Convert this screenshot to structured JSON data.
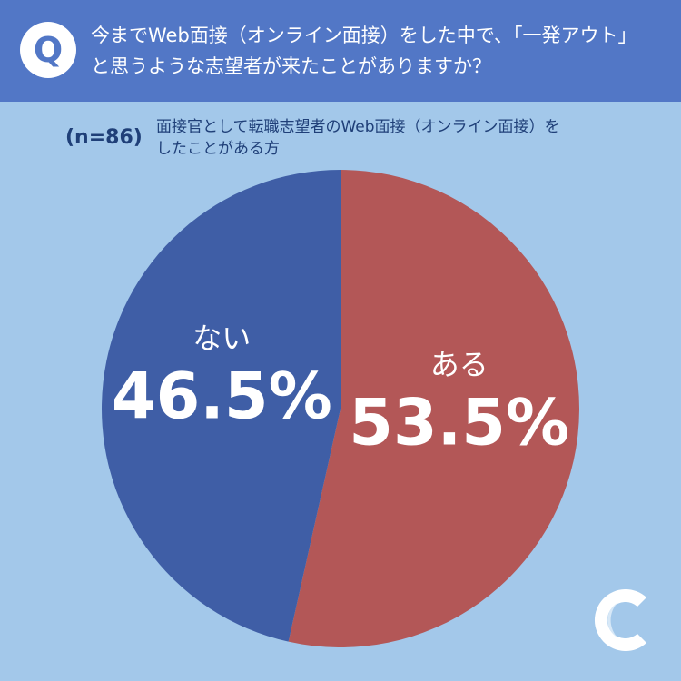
{
  "header": {
    "q_mark": "Q",
    "question_line1": "今までWeb面接（オンライン面接）をした中で、「一発アウト」",
    "question_line2": "と思うような志望者が来たことがありますか？"
  },
  "sample_size": "(n=86)",
  "respondents": {
    "line1": "面接官として転職志望者のWeb面接（オンライン面接）を",
    "line2": "したことがある方"
  },
  "chart_data": {
    "type": "pie",
    "start": "12 o'clock",
    "direction": "clockwise",
    "slices": [
      {
        "label": "ある",
        "value": 53.5,
        "display": "53.5%",
        "color": "#b35757"
      },
      {
        "label": "ない",
        "value": 46.5,
        "display": "46.5%",
        "color": "#3f5ea6"
      }
    ]
  },
  "colors": {
    "background": "#a3c8ea",
    "header": "#5277c6",
    "text_dark": "#1f3f78"
  },
  "logo_icon": "c-mark-logo"
}
